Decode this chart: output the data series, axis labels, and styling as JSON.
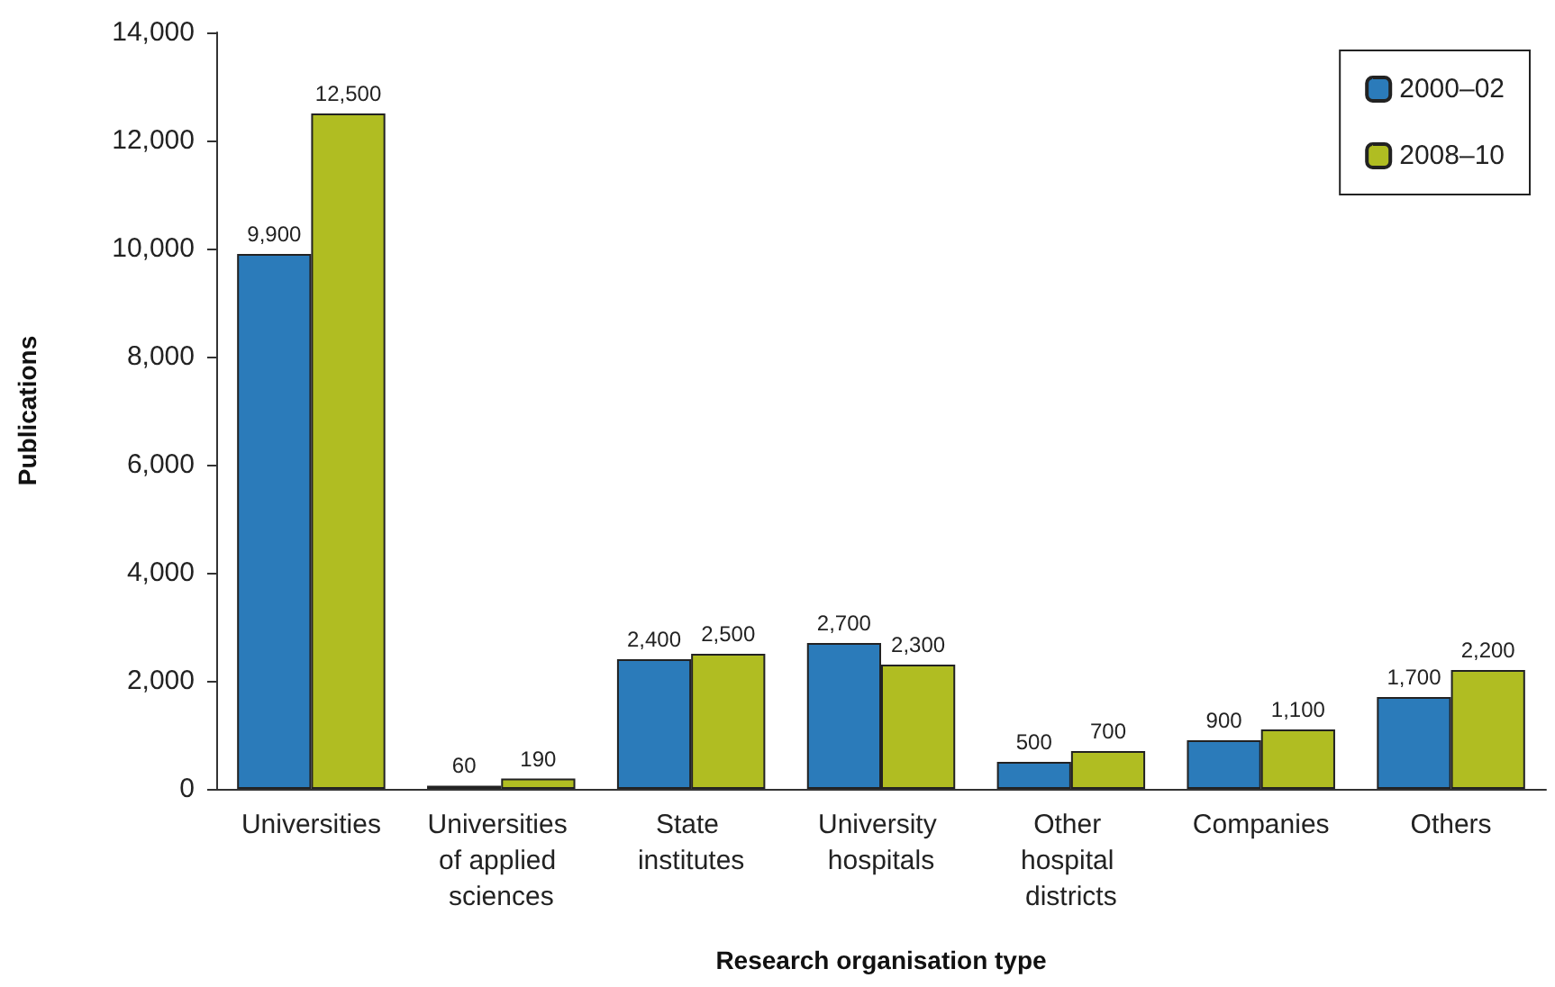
{
  "chart_data": {
    "type": "bar",
    "xlabel": "Research organisation type",
    "ylabel": "Publications",
    "categories": [
      "Universities",
      "Universities of applied sciences",
      "State institutes",
      "University hospitals",
      "Other hospital districts",
      "Companies",
      "Others"
    ],
    "series": [
      {
        "name": "2000–02",
        "color": "#2b7bba",
        "values": [
          9900,
          60,
          2400,
          2700,
          500,
          900,
          1700
        ],
        "value_labels": [
          "9,900",
          "60",
          "2,400",
          "2,700",
          "500",
          "900",
          "1,700"
        ]
      },
      {
        "name": "2008–10",
        "color": "#b0bd22",
        "values": [
          12500,
          190,
          2500,
          2300,
          700,
          1100,
          2200
        ],
        "value_labels": [
          "12,500",
          "190",
          "2,500",
          "2,300",
          "700",
          "1,100",
          "2,200"
        ]
      }
    ],
    "ylim": [
      0,
      14000
    ],
    "yticks": [
      0,
      {
        "value": 2000,
        "label": "2,000"
      },
      {
        "value": 4000,
        "label": "4,000"
      },
      {
        "value": 6000,
        "label": "6,000"
      },
      {
        "value": 8000,
        "label": "8,000"
      },
      {
        "value": 10000,
        "label": "10,000"
      },
      {
        "value": 12000,
        "label": "12,000"
      },
      {
        "value": 14000,
        "label": "14,000"
      }
    ],
    "grid": false,
    "legend": "top right"
  }
}
